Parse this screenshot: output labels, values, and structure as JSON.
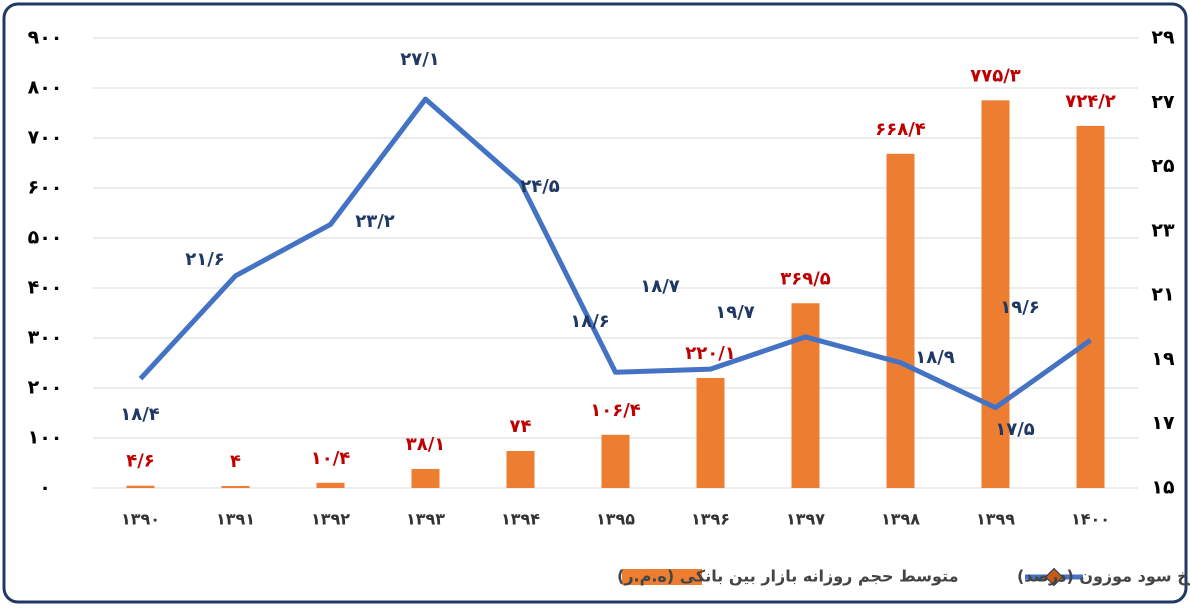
{
  "chart_data": {
    "type": "bar-line",
    "categories": [
      "۱۳۹۰",
      "۱۳۹۱",
      "۱۳۹۲",
      "۱۳۹۳",
      "۱۳۹۴",
      "۱۳۹۵",
      "۱۳۹۶",
      "۱۳۹۷",
      "۱۳۹۸",
      "۱۳۹۹",
      "۱۴۰۰"
    ],
    "series": [
      {
        "name": "متوسط حجم روزانه بازار بین بانکی (ه.م.ر)",
        "color": "#ed7d31",
        "type": "bar",
        "values": [
          4.6,
          4,
          10.4,
          38.1,
          74,
          106.4,
          220.1,
          369.5,
          668.4,
          775.3,
          724.2
        ],
        "value_labels": [
          "۴/۶",
          "۴",
          "۱۰/۴",
          "۳۸/۱",
          "۷۴",
          "۱۰۶/۴",
          "۲۲۰/۱",
          "۳۶۹/۵",
          "۶۶۸/۴",
          "۷۷۵/۳",
          "۷۲۴/۲"
        ]
      },
      {
        "name": "نرخ سود موزون (درصد)",
        "color": "#4472c4",
        "type": "line",
        "axis": "y2",
        "values": [
          18.4,
          21.6,
          23.2,
          27.1,
          24.5,
          18.6,
          18.7,
          19.7,
          18.9,
          17.5,
          19.6
        ],
        "value_labels": [
          "۱۸/۴",
          "۲۱/۶",
          "۲۳/۲",
          "۲۷/۱",
          "۲۴/۵",
          "۱۸/۶",
          "۱۸/۷",
          "۱۹/۷",
          "۱۸/۹",
          "۱۷/۵",
          "۱۹/۶"
        ]
      }
    ],
    "ylim": [
      0,
      900
    ],
    "yticks": [
      {
        "value": 0,
        "label": "۰"
      },
      {
        "value": 100,
        "label": "۱۰۰"
      },
      {
        "value": 200,
        "label": "۲۰۰"
      },
      {
        "value": 300,
        "label": "۳۰۰"
      },
      {
        "value": 400,
        "label": "۴۰۰"
      },
      {
        "value": 500,
        "label": "۵۰۰"
      },
      {
        "value": 600,
        "label": "۶۰۰"
      },
      {
        "value": 700,
        "label": "۷۰۰"
      },
      {
        "value": 800,
        "label": "۸۰۰"
      },
      {
        "value": 900,
        "label": "۹۰۰"
      }
    ],
    "y2lim": [
      15,
      29
    ],
    "y2ticks": [
      {
        "value": 15,
        "label": "۱۵"
      },
      {
        "value": 17,
        "label": "۱۷"
      },
      {
        "value": 19,
        "label": "۱۹"
      },
      {
        "value": 21,
        "label": "۲۱"
      },
      {
        "value": 23,
        "label": "۲۳"
      },
      {
        "value": 25,
        "label": "۲۵"
      },
      {
        "value": 27,
        "label": "۲۷"
      },
      {
        "value": 29,
        "label": "۲۹"
      }
    ],
    "grid": true
  }
}
